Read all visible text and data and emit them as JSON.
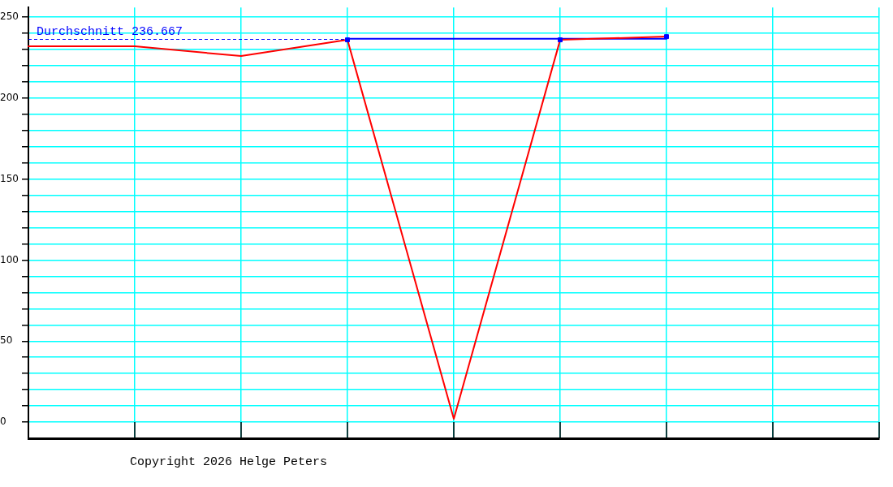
{
  "chart_data": {
    "type": "line",
    "categories": [
      null,
      null,
      null,
      null,
      null,
      null,
      null,
      null,
      null
    ],
    "series": [
      {
        "color": "#0000ff",
        "marker": "none",
        "values": [
          null,
          null,
          null,
          236.667,
          236.667,
          236.667,
          236.667,
          null,
          null
        ]
      },
      {
        "color": "#ff0000",
        "marker": "none",
        "values": [
          232,
          232,
          226,
          236,
          2,
          236,
          238,
          null,
          null
        ]
      },
      {
        "type": "scatter",
        "color": "#0000ff",
        "marker": "square",
        "values": [
          null,
          null,
          null,
          236,
          null,
          236,
          238,
          null,
          null
        ]
      }
    ],
    "ylim": [
      -10,
      256
    ],
    "yticks": [
      0,
      {
        "value": 10,
        "label": null
      },
      {
        "value": 20,
        "label": null
      },
      {
        "value": 30,
        "label": null
      },
      {
        "value": 40,
        "label": null
      },
      50,
      {
        "value": 60,
        "label": null
      },
      {
        "value": 70,
        "label": null
      },
      {
        "value": 80,
        "label": null
      },
      {
        "value": 90,
        "label": null
      },
      100,
      {
        "value": 110,
        "label": null
      },
      {
        "value": 120,
        "label": null
      },
      {
        "value": 130,
        "label": null
      },
      {
        "value": 140,
        "label": null
      },
      150,
      {
        "value": 160,
        "label": null
      },
      {
        "value": 170,
        "label": null
      },
      {
        "value": 180,
        "label": null
      },
      {
        "value": 190,
        "label": null
      },
      200,
      {
        "value": 210,
        "label": null
      },
      {
        "value": 220,
        "label": null
      },
      {
        "value": 230,
        "label": null
      },
      {
        "value": 240,
        "label": null
      },
      250
    ],
    "grid": true,
    "tick_labels": "y",
    "ref_lines": [
      {
        "axis": "y",
        "value": 236.667,
        "label": "Durchschnitt 236.667",
        "color": "#0000ff",
        "line_style": "dashed"
      }
    ],
    "annotations": [
      "Copyright 2026 Helge Peters"
    ]
  }
}
